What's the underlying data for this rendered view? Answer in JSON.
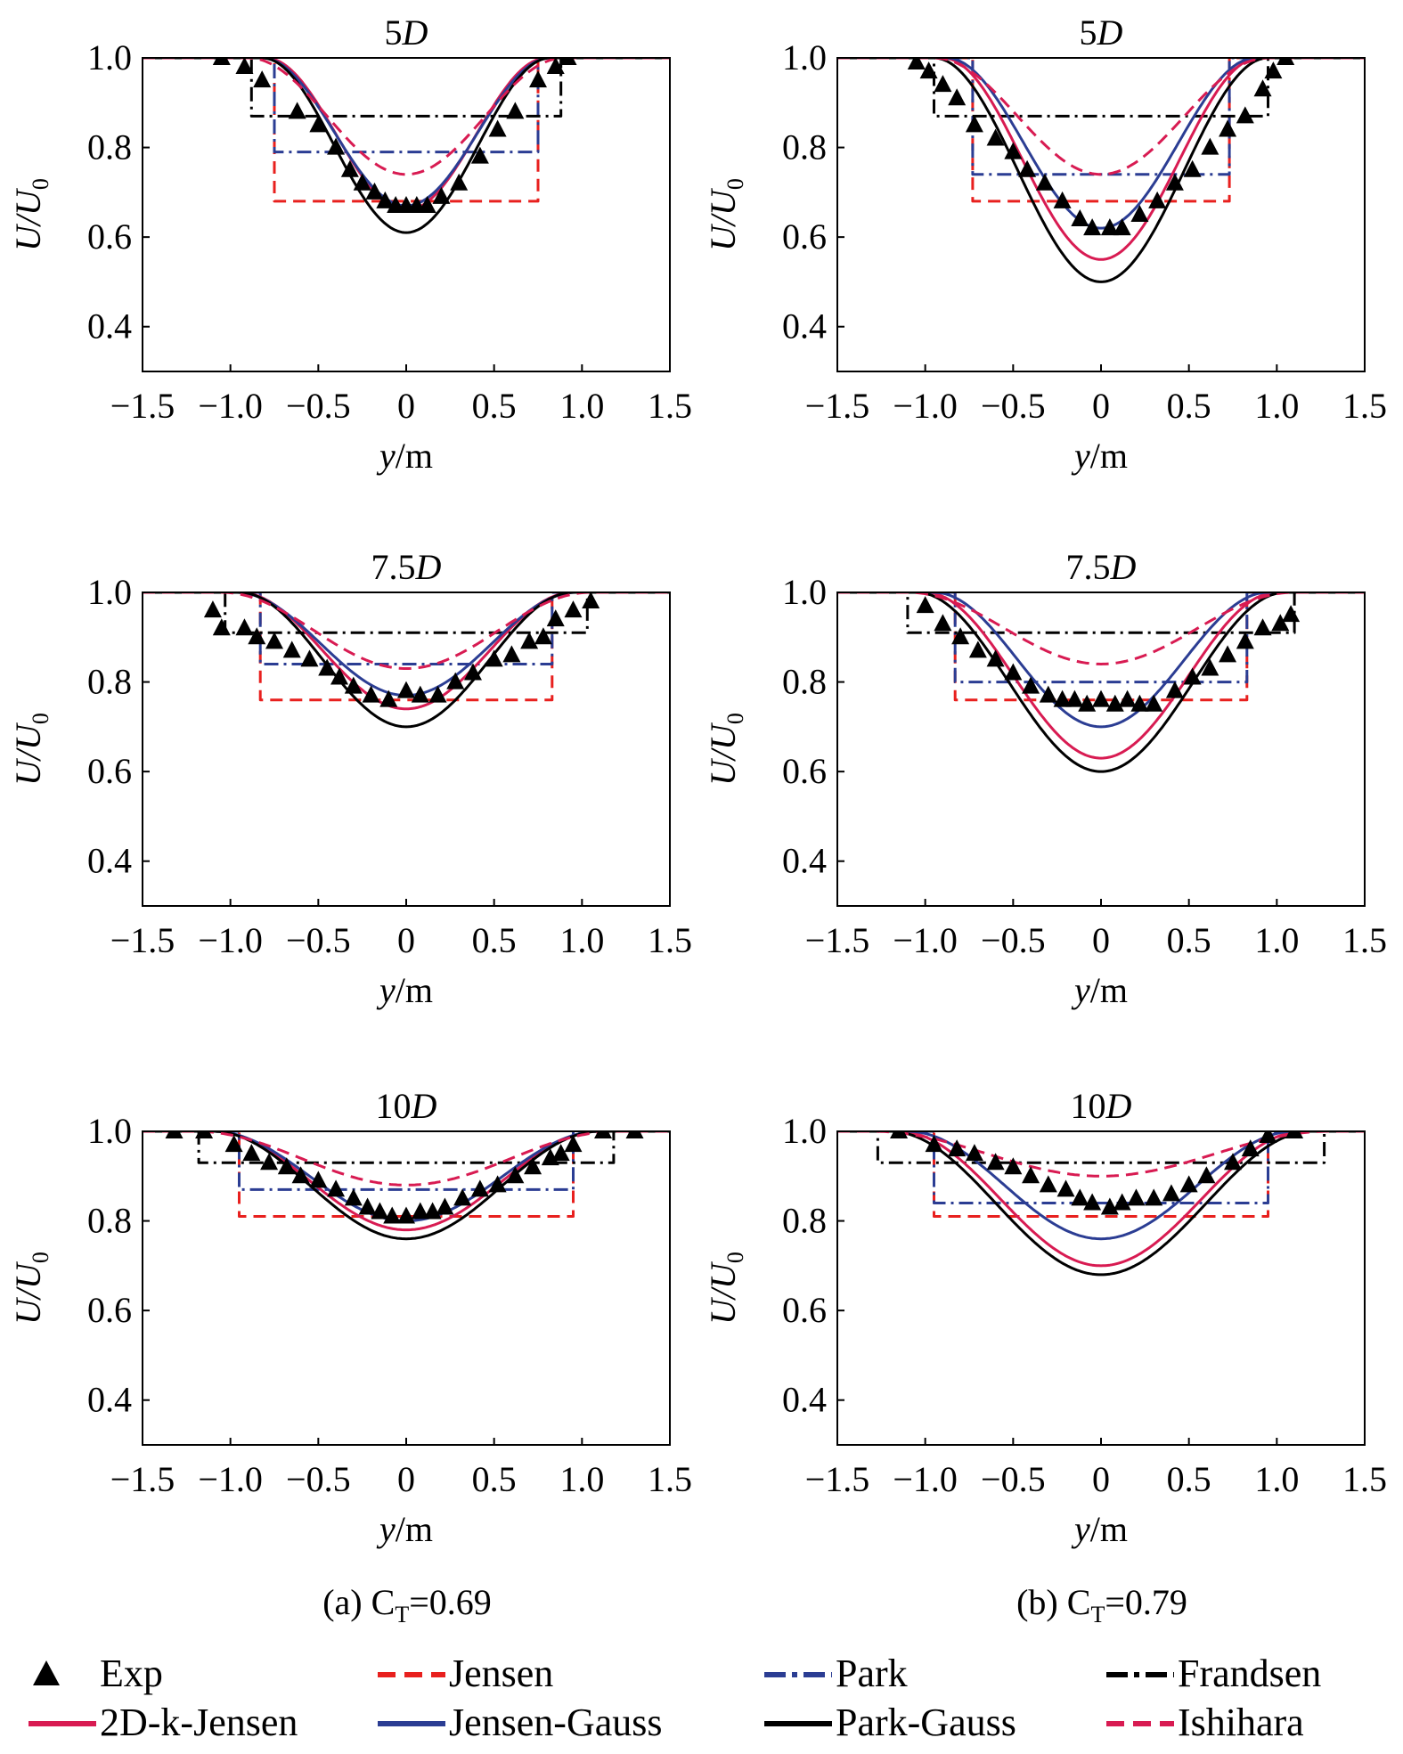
{
  "figure": {
    "axis_ylabel_main": "U/U",
    "axis_ylabel_sub": "0",
    "axis_xlabel_var": "y",
    "axis_xlabel_unit": "/m",
    "panel_captions": [
      {
        "prefix": "(a) C",
        "sub": "T",
        "suffix": "=0.69"
      },
      {
        "prefix": "(b) C",
        "sub": "T",
        "suffix": "=0.79"
      }
    ],
    "legend": [
      {
        "label": "Exp",
        "style": "marker"
      },
      {
        "label": "Jensen",
        "style": "dash"
      },
      {
        "label": "Park",
        "style": "dashdot"
      },
      {
        "label": "Frandsen",
        "style": "dashdot"
      },
      {
        "label": "2D-k-Jensen",
        "style": "solid"
      },
      {
        "label": "Jensen-Gauss",
        "style": "solid"
      },
      {
        "label": "Park-Gauss",
        "style": "solid"
      },
      {
        "label": "Ishihara",
        "style": "dash"
      }
    ]
  },
  "colors": {
    "Exp": "#000000",
    "Jensen": "#e8201e",
    "Park": "#2b3d93",
    "Frandsen": "#000000",
    "2D-k-Jensen": "#d81b52",
    "Jensen-Gauss": "#2b3d93",
    "Park-Gauss": "#000000",
    "Ishihara": "#d81b52"
  },
  "chart_data": [
    {
      "type": "line",
      "panel": "a",
      "title_num": "5",
      "title_unit": "D",
      "xlim": [
        -1.5,
        1.5
      ],
      "ylim": [
        0.3,
        1.0
      ],
      "xticks": [
        -1.5,
        -1.0,
        -0.5,
        0,
        0.5,
        1.0,
        1.5
      ],
      "xtick_labels": [
        "−1.5",
        "−1.0",
        "−0.5",
        "0",
        "0.5",
        "1.0",
        "1.5"
      ],
      "yticks": [
        0.4,
        0.6,
        0.8,
        1.0
      ],
      "ytick_labels": [
        "0.4",
        "0.6",
        "0.8",
        "1.0"
      ],
      "series": [
        {
          "name": "Jensen",
          "kind": "tophat",
          "half_width": 0.75,
          "deficit": 0.32
        },
        {
          "name": "Park",
          "kind": "tophat",
          "half_width": 0.75,
          "deficit": 0.21
        },
        {
          "name": "Frandsen",
          "kind": "tophat",
          "half_width": 0.88,
          "deficit": 0.13
        },
        {
          "name": "2D-k-Jensen",
          "kind": "cosine",
          "half_width": 0.8,
          "deficit": 0.34
        },
        {
          "name": "Jensen-Gauss",
          "kind": "cosine",
          "half_width": 0.82,
          "deficit": 0.33
        },
        {
          "name": "Park-Gauss",
          "kind": "cosine",
          "half_width": 0.82,
          "deficit": 0.39
        },
        {
          "name": "Ishihara",
          "kind": "cosine",
          "half_width": 0.9,
          "deficit": 0.26
        },
        {
          "name": "Exp",
          "kind": "points",
          "x": [
            -1.05,
            -0.92,
            -0.82,
            -0.62,
            -0.5,
            -0.4,
            -0.32,
            -0.25,
            -0.18,
            -0.12,
            -0.06,
            0,
            0.06,
            0.12,
            0.2,
            0.3,
            0.42,
            0.52,
            0.62,
            0.75,
            0.85,
            0.92
          ],
          "y": [
            1.0,
            0.98,
            0.95,
            0.88,
            0.85,
            0.8,
            0.75,
            0.72,
            0.7,
            0.68,
            0.67,
            0.67,
            0.67,
            0.67,
            0.69,
            0.72,
            0.78,
            0.84,
            0.88,
            0.95,
            0.98,
            1.0
          ]
        }
      ]
    },
    {
      "type": "line",
      "panel": "b",
      "title_num": "5",
      "title_unit": "D",
      "xlim": [
        -1.5,
        1.5
      ],
      "ylim": [
        0.3,
        1.0
      ],
      "xticks": [
        -1.5,
        -1.0,
        -0.5,
        0,
        0.5,
        1.0,
        1.5
      ],
      "xtick_labels": [
        "−1.5",
        "−1.0",
        "−0.5",
        "0",
        "0.5",
        "1.0",
        "1.5"
      ],
      "yticks": [
        0.4,
        0.6,
        0.8,
        1.0
      ],
      "ytick_labels": [
        "0.4",
        "0.6",
        "0.8",
        "1.0"
      ],
      "series": [
        {
          "name": "Jensen",
          "kind": "tophat",
          "half_width": 0.73,
          "deficit": 0.32
        },
        {
          "name": "Park",
          "kind": "tophat",
          "half_width": 0.73,
          "deficit": 0.26
        },
        {
          "name": "Frandsen",
          "kind": "tophat",
          "half_width": 0.95,
          "deficit": 0.13
        },
        {
          "name": "2D-k-Jensen",
          "kind": "cosine",
          "half_width": 0.9,
          "deficit": 0.45
        },
        {
          "name": "Jensen-Gauss",
          "kind": "cosine",
          "half_width": 0.88,
          "deficit": 0.38
        },
        {
          "name": "Park-Gauss",
          "kind": "cosine",
          "half_width": 0.95,
          "deficit": 0.5
        },
        {
          "name": "Ishihara",
          "kind": "cosine",
          "half_width": 0.95,
          "deficit": 0.26
        },
        {
          "name": "Exp",
          "kind": "points",
          "x": [
            -1.05,
            -0.98,
            -0.9,
            -0.82,
            -0.72,
            -0.6,
            -0.5,
            -0.42,
            -0.32,
            -0.22,
            -0.12,
            -0.05,
            0.05,
            0.12,
            0.22,
            0.32,
            0.42,
            0.52,
            0.62,
            0.72,
            0.82,
            0.92,
            0.98,
            1.05
          ],
          "y": [
            0.99,
            0.97,
            0.94,
            0.91,
            0.85,
            0.82,
            0.79,
            0.75,
            0.72,
            0.68,
            0.64,
            0.62,
            0.62,
            0.62,
            0.65,
            0.68,
            0.72,
            0.75,
            0.8,
            0.84,
            0.87,
            0.93,
            0.97,
            1.0
          ]
        }
      ]
    },
    {
      "type": "line",
      "panel": "a",
      "title_num": "7.5",
      "title_unit": "D",
      "xlim": [
        -1.5,
        1.5
      ],
      "ylim": [
        0.3,
        1.0
      ],
      "xticks": [
        -1.5,
        -1.0,
        -0.5,
        0,
        0.5,
        1.0,
        1.5
      ],
      "xtick_labels": [
        "−1.5",
        "−1.0",
        "−0.5",
        "0",
        "0.5",
        "1.0",
        "1.5"
      ],
      "yticks": [
        0.4,
        0.6,
        0.8,
        1.0
      ],
      "ytick_labels": [
        "0.4",
        "0.6",
        "0.8",
        "1.0"
      ],
      "series": [
        {
          "name": "Jensen",
          "kind": "tophat",
          "half_width": 0.83,
          "deficit": 0.24
        },
        {
          "name": "Park",
          "kind": "tophat",
          "half_width": 0.83,
          "deficit": 0.16
        },
        {
          "name": "Frandsen",
          "kind": "tophat",
          "half_width": 1.03,
          "deficit": 0.09
        },
        {
          "name": "2D-k-Jensen",
          "kind": "cosine",
          "half_width": 0.95,
          "deficit": 0.26
        },
        {
          "name": "Jensen-Gauss",
          "kind": "cosine",
          "half_width": 0.97,
          "deficit": 0.23
        },
        {
          "name": "Park-Gauss",
          "kind": "cosine",
          "half_width": 0.95,
          "deficit": 0.3
        },
        {
          "name": "Ishihara",
          "kind": "cosine",
          "half_width": 1.05,
          "deficit": 0.17
        },
        {
          "name": "Exp",
          "kind": "points",
          "x": [
            -1.1,
            -1.05,
            -0.92,
            -0.85,
            -0.75,
            -0.65,
            -0.55,
            -0.45,
            -0.38,
            -0.3,
            -0.2,
            -0.1,
            0,
            0.08,
            0.18,
            0.28,
            0.38,
            0.5,
            0.6,
            0.7,
            0.78,
            0.85,
            0.95,
            1.05
          ],
          "y": [
            0.96,
            0.92,
            0.92,
            0.9,
            0.89,
            0.87,
            0.85,
            0.83,
            0.81,
            0.79,
            0.77,
            0.76,
            0.78,
            0.77,
            0.77,
            0.8,
            0.82,
            0.85,
            0.86,
            0.89,
            0.9,
            0.94,
            0.96,
            0.98
          ]
        }
      ]
    },
    {
      "type": "line",
      "panel": "b",
      "title_num": "7.5",
      "title_unit": "D",
      "xlim": [
        -1.5,
        1.5
      ],
      "ylim": [
        0.3,
        1.0
      ],
      "xticks": [
        -1.5,
        -1.0,
        -0.5,
        0,
        0.5,
        1.0,
        1.5
      ],
      "xtick_labels": [
        "−1.5",
        "−1.0",
        "−0.5",
        "0",
        "0.5",
        "1.0",
        "1.5"
      ],
      "yticks": [
        0.4,
        0.6,
        0.8,
        1.0
      ],
      "ytick_labels": [
        "0.4",
        "0.6",
        "0.8",
        "1.0"
      ],
      "series": [
        {
          "name": "Jensen",
          "kind": "tophat",
          "half_width": 0.83,
          "deficit": 0.24
        },
        {
          "name": "Park",
          "kind": "tophat",
          "half_width": 0.83,
          "deficit": 0.2
        },
        {
          "name": "Frandsen",
          "kind": "tophat",
          "half_width": 1.1,
          "deficit": 0.09
        },
        {
          "name": "2D-k-Jensen",
          "kind": "cosine",
          "half_width": 1.0,
          "deficit": 0.37
        },
        {
          "name": "Jensen-Gauss",
          "kind": "cosine",
          "half_width": 0.95,
          "deficit": 0.3
        },
        {
          "name": "Park-Gauss",
          "kind": "cosine",
          "half_width": 1.05,
          "deficit": 0.4
        },
        {
          "name": "Ishihara",
          "kind": "cosine",
          "half_width": 1.1,
          "deficit": 0.16
        },
        {
          "name": "Exp",
          "kind": "points",
          "x": [
            -1.0,
            -0.9,
            -0.8,
            -0.7,
            -0.6,
            -0.5,
            -0.4,
            -0.3,
            -0.22,
            -0.15,
            -0.08,
            0,
            0.08,
            0.15,
            0.22,
            0.3,
            0.42,
            0.52,
            0.62,
            0.72,
            0.82,
            0.92,
            1.02,
            1.08
          ],
          "y": [
            0.97,
            0.93,
            0.9,
            0.87,
            0.85,
            0.82,
            0.79,
            0.77,
            0.76,
            0.76,
            0.75,
            0.76,
            0.75,
            0.76,
            0.75,
            0.75,
            0.78,
            0.81,
            0.83,
            0.86,
            0.89,
            0.92,
            0.93,
            0.95
          ]
        }
      ]
    },
    {
      "type": "line",
      "panel": "a",
      "title_num": "10",
      "title_unit": "D",
      "xlim": [
        -1.5,
        1.5
      ],
      "ylim": [
        0.3,
        1.0
      ],
      "xticks": [
        -1.5,
        -1.0,
        -0.5,
        0,
        0.5,
        1.0,
        1.5
      ],
      "xtick_labels": [
        "−1.5",
        "−1.0",
        "−0.5",
        "0",
        "0.5",
        "1.0",
        "1.5"
      ],
      "yticks": [
        0.4,
        0.6,
        0.8,
        1.0
      ],
      "ytick_labels": [
        "0.4",
        "0.6",
        "0.8",
        "1.0"
      ],
      "series": [
        {
          "name": "Jensen",
          "kind": "tophat",
          "half_width": 0.95,
          "deficit": 0.19
        },
        {
          "name": "Park",
          "kind": "tophat",
          "half_width": 0.95,
          "deficit": 0.13
        },
        {
          "name": "Frandsen",
          "kind": "tophat",
          "half_width": 1.18,
          "deficit": 0.07
        },
        {
          "name": "2D-k-Jensen",
          "kind": "cosine",
          "half_width": 1.1,
          "deficit": 0.22
        },
        {
          "name": "Jensen-Gauss",
          "kind": "cosine",
          "half_width": 1.1,
          "deficit": 0.2
        },
        {
          "name": "Park-Gauss",
          "kind": "cosine",
          "half_width": 1.1,
          "deficit": 0.24
        },
        {
          "name": "Ishihara",
          "kind": "cosine",
          "half_width": 1.2,
          "deficit": 0.12
        },
        {
          "name": "Exp",
          "kind": "points",
          "x": [
            -1.32,
            -1.15,
            -0.98,
            -0.88,
            -0.78,
            -0.68,
            -0.6,
            -0.5,
            -0.4,
            -0.3,
            -0.22,
            -0.15,
            -0.08,
            0,
            0.08,
            0.15,
            0.22,
            0.32,
            0.42,
            0.52,
            0.62,
            0.72,
            0.82,
            0.88,
            0.95,
            1.12,
            1.3
          ],
          "y": [
            1.0,
            1.0,
            0.97,
            0.95,
            0.93,
            0.92,
            0.9,
            0.89,
            0.87,
            0.85,
            0.83,
            0.82,
            0.81,
            0.81,
            0.82,
            0.82,
            0.83,
            0.85,
            0.87,
            0.88,
            0.9,
            0.92,
            0.94,
            0.95,
            0.97,
            1.0,
            1.0
          ]
        }
      ]
    },
    {
      "type": "line",
      "panel": "b",
      "title_num": "10",
      "title_unit": "D",
      "xlim": [
        -1.5,
        1.5
      ],
      "ylim": [
        0.3,
        1.0
      ],
      "xticks": [
        -1.5,
        -1.0,
        -0.5,
        0,
        0.5,
        1.0,
        1.5
      ],
      "xtick_labels": [
        "−1.5",
        "−1.0",
        "−0.5",
        "0",
        "0.5",
        "1.0",
        "1.5"
      ],
      "yticks": [
        0.4,
        0.6,
        0.8,
        1.0
      ],
      "ytick_labels": [
        "0.4",
        "0.6",
        "0.8",
        "1.0"
      ],
      "series": [
        {
          "name": "Jensen",
          "kind": "tophat",
          "half_width": 0.95,
          "deficit": 0.19
        },
        {
          "name": "Park",
          "kind": "tophat",
          "half_width": 0.95,
          "deficit": 0.16
        },
        {
          "name": "Frandsen",
          "kind": "tophat",
          "half_width": 1.27,
          "deficit": 0.07
        },
        {
          "name": "2D-k-Jensen",
          "kind": "cosine",
          "half_width": 1.15,
          "deficit": 0.3
        },
        {
          "name": "Jensen-Gauss",
          "kind": "cosine",
          "half_width": 1.1,
          "deficit": 0.24
        },
        {
          "name": "Park-Gauss",
          "kind": "cosine",
          "half_width": 1.2,
          "deficit": 0.32
        },
        {
          "name": "Ishihara",
          "kind": "cosine",
          "half_width": 1.3,
          "deficit": 0.1
        },
        {
          "name": "Exp",
          "kind": "points",
          "x": [
            -1.15,
            -0.95,
            -0.82,
            -0.72,
            -0.6,
            -0.5,
            -0.4,
            -0.3,
            -0.2,
            -0.12,
            -0.05,
            0.05,
            0.12,
            0.2,
            0.3,
            0.4,
            0.5,
            0.6,
            0.75,
            0.85,
            0.95,
            1.1
          ],
          "y": [
            1.0,
            0.97,
            0.96,
            0.95,
            0.93,
            0.92,
            0.9,
            0.88,
            0.87,
            0.85,
            0.84,
            0.83,
            0.84,
            0.85,
            0.85,
            0.86,
            0.88,
            0.9,
            0.93,
            0.96,
            0.99,
            1.0
          ]
        }
      ]
    }
  ]
}
